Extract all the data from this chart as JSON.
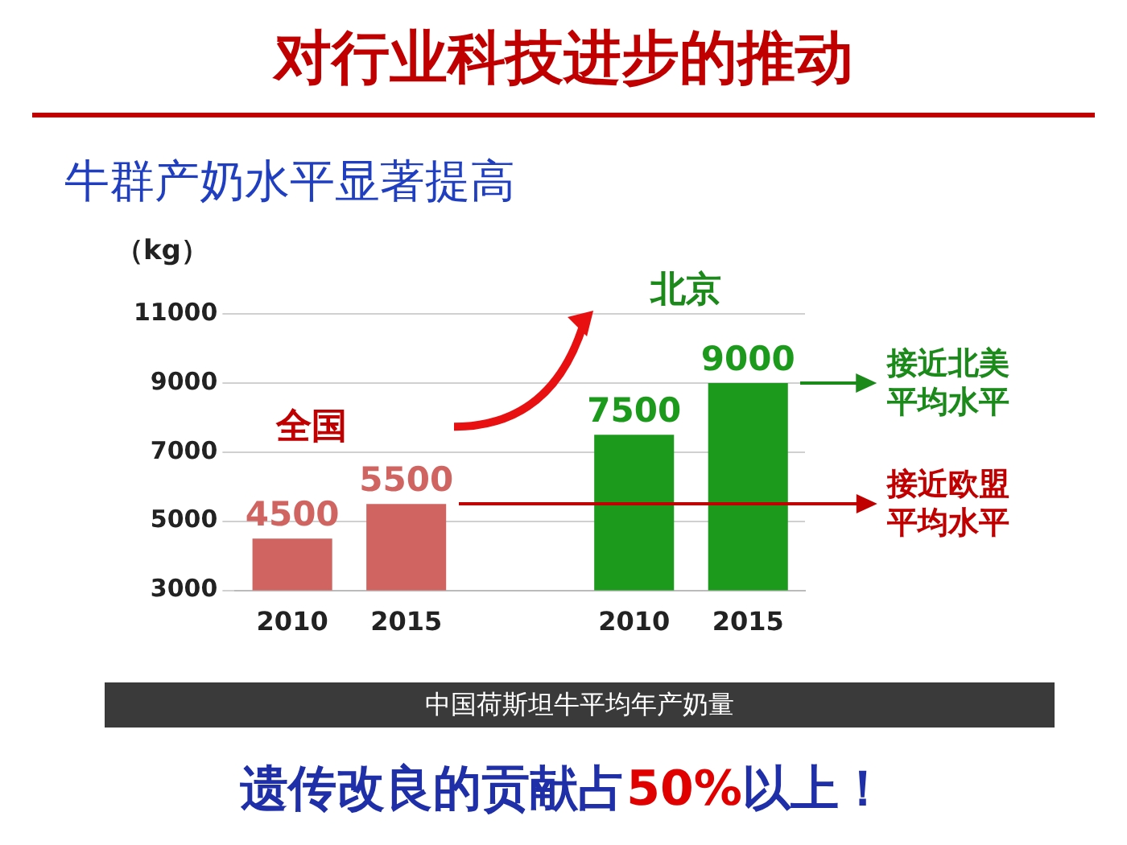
{
  "chart_data": {
    "type": "bar",
    "title": "对行业科技进步的推动",
    "subtitle": "牛群产奶水平显著提高",
    "ylabel": "（kg）",
    "categories": [
      "2010",
      "2015",
      null,
      "2010",
      "2015"
    ],
    "values": [
      4500,
      5500,
      null,
      7500,
      9000
    ],
    "colors": [
      "#d06461",
      "#d06461",
      "#1b9a1b",
      "#1b9a1b",
      "#1b9a1b"
    ],
    "ylim": [
      3000,
      11000
    ],
    "yticks": [
      3000,
      5000,
      7000,
      9000,
      11000
    ],
    "grid": "y",
    "data_labels": true,
    "annotations": [
      "全国",
      "北京",
      "接近北美平均水平",
      "接近欧盟平均水平",
      "中国荷斯坦牛平均年产奶量",
      "遗传改良的贡献占50%以上！"
    ]
  }
}
